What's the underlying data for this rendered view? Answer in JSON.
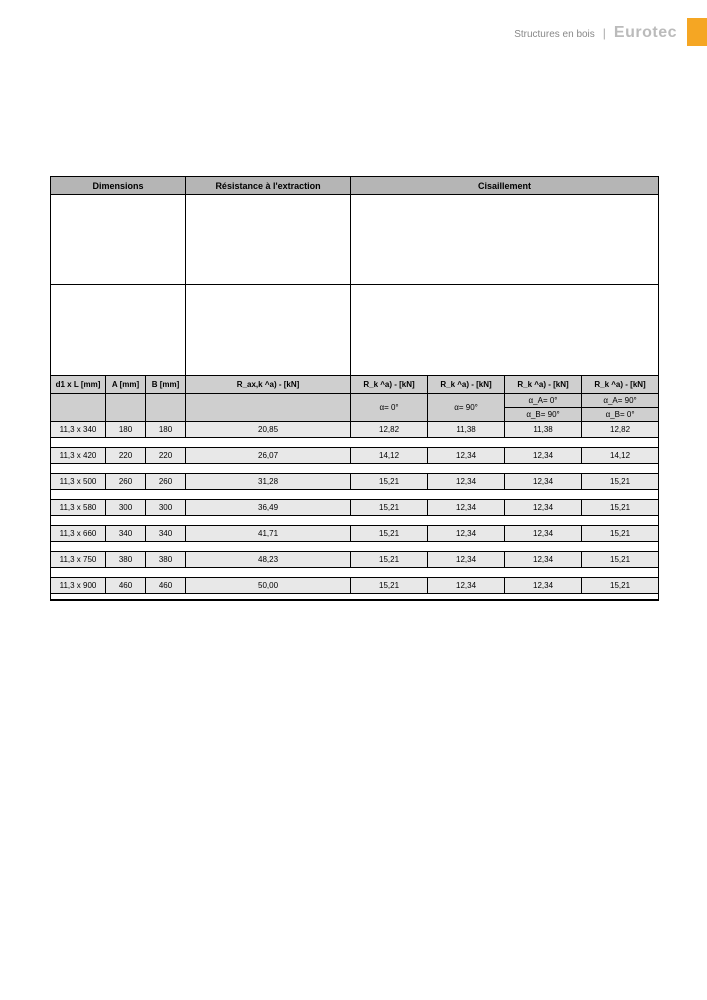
{
  "header": {
    "section": "Structures en bois",
    "brand": "Eurotec"
  },
  "table": {
    "groupHeaders": {
      "dimensions": "Dimensions",
      "withdrawal": "Résistance à l'extraction",
      "shear": "Cisaillement"
    },
    "colHeaders": {
      "d1L": "d1 x L [mm]",
      "A": "A [mm]",
      "B": "B [mm]",
      "Raxk": "R_ax,k ^a) - [kN]",
      "Rk1": "R_k ^a) - [kN]",
      "Rk2": "R_k ^a) - [kN]",
      "Rk3": "R_k ^a) - [kN]",
      "Rk4": "R_k ^a) - [kN]"
    },
    "subHeaders": {
      "alpha0": "α= 0°",
      "alpha90": "α= 90°",
      "aA0": "α_A= 0°",
      "aA90": "α_A= 90°",
      "aB90": "α_B= 90°",
      "aB0": "α_B= 0°"
    },
    "rows": [
      {
        "d": "11,3 x 340",
        "A": "180",
        "B": "180",
        "Rax": "20,85",
        "r1": "12,82",
        "r2": "11,38",
        "r3": "11,38",
        "r4": "12,82"
      },
      {
        "d": "11,3 x 420",
        "A": "220",
        "B": "220",
        "Rax": "26,07",
        "r1": "14,12",
        "r2": "12,34",
        "r3": "12,34",
        "r4": "14,12"
      },
      {
        "d": "11,3 x 500",
        "A": "260",
        "B": "260",
        "Rax": "31,28",
        "r1": "15,21",
        "r2": "12,34",
        "r3": "12,34",
        "r4": "15,21"
      },
      {
        "d": "11,3 x 580",
        "A": "300",
        "B": "300",
        "Rax": "36,49",
        "r1": "15,21",
        "r2": "12,34",
        "r3": "12,34",
        "r4": "15,21"
      },
      {
        "d": "11,3 x 660",
        "A": "340",
        "B": "340",
        "Rax": "41,71",
        "r1": "15,21",
        "r2": "12,34",
        "r3": "12,34",
        "r4": "15,21"
      },
      {
        "d": "11,3 x 750",
        "A": "380",
        "B": "380",
        "Rax": "48,23",
        "r1": "15,21",
        "r2": "12,34",
        "r3": "12,34",
        "r4": "15,21"
      },
      {
        "d": "11,3 x 900",
        "A": "460",
        "B": "460",
        "Rax": "50,00",
        "r1": "15,21",
        "r2": "12,34",
        "r3": "12,34",
        "r4": "15,21"
      }
    ]
  },
  "colors": {
    "tab": "#f5a623",
    "hdr1": "#b5b5b5",
    "hdr2": "#cfcfcf",
    "data": "#e8e8e8",
    "border": "#000000"
  }
}
